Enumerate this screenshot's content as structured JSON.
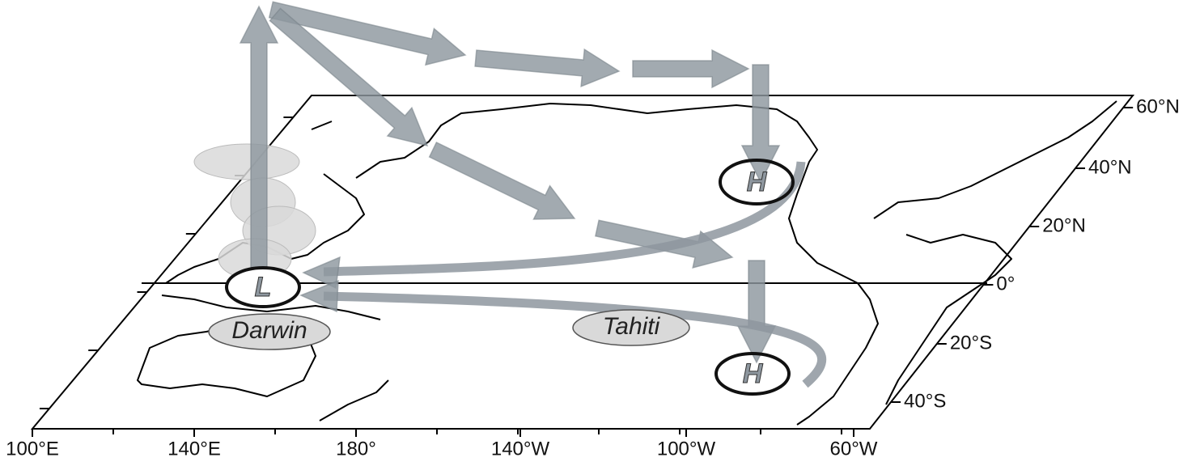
{
  "map": {
    "longitude_labels": [
      "100°E",
      "140°E",
      "180°",
      "140°W",
      "100°W",
      "60°W"
    ],
    "latitude_labels": [
      "60°N",
      "40°N",
      "20°N",
      "0°",
      "20°S",
      "40°S"
    ]
  },
  "labels": {
    "low": "L",
    "high_north": "H",
    "high_south": "H",
    "darwin": "Darwin",
    "tahiti": "Tahiti"
  }
}
